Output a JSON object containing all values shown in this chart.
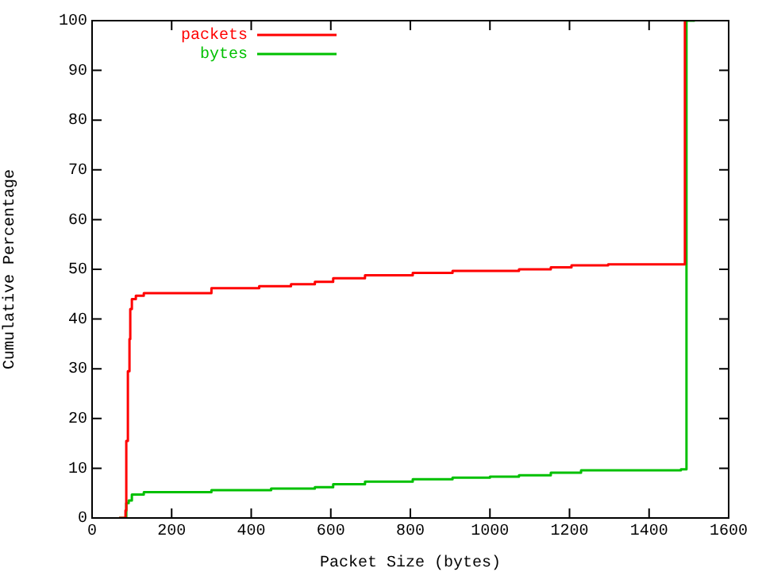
{
  "chart_data": {
    "type": "step",
    "xlabel": "Packet Size (bytes)",
    "ylabel": "Cumulative Percentage",
    "xlim": [
      0,
      1600
    ],
    "xticks": [
      0,
      200,
      400,
      600,
      800,
      1000,
      1200,
      1400,
      1600
    ],
    "ylim": [
      0,
      100
    ],
    "yticks": [
      0,
      10,
      20,
      30,
      40,
      50,
      60,
      70,
      80,
      90,
      100
    ],
    "grid": false,
    "legend": "top left",
    "series": [
      {
        "name": "packets",
        "color": "#ff0000",
        "x": [
          68,
          84,
          86,
          90,
          94,
          96,
          100,
          110,
          130,
          300,
          420,
          500,
          560,
          606,
          686,
          806,
          906,
          1073,
          1153,
          1205,
          1297,
          1490
        ],
        "values": [
          0,
          1.5,
          15.5,
          29.5,
          36,
          42,
          44,
          44.7,
          45.2,
          46.2,
          46.6,
          47,
          47.5,
          48.2,
          48.8,
          49.3,
          49.7,
          50,
          50.4,
          50.8,
          51,
          100
        ]
      },
      {
        "name": "bytes",
        "color": "#00c000",
        "x": [
          68,
          84,
          86,
          92,
          100,
          130,
          300,
          450,
          560,
          606,
          686,
          806,
          906,
          1000,
          1073,
          1153,
          1229,
          1480,
          1494,
          1515
        ],
        "values": [
          0,
          0,
          3,
          3.5,
          4.7,
          5.2,
          5.6,
          5.9,
          6.2,
          6.8,
          7.3,
          7.8,
          8.1,
          8.3,
          8.6,
          9.1,
          9.6,
          9.8,
          100,
          100
        ]
      }
    ]
  }
}
